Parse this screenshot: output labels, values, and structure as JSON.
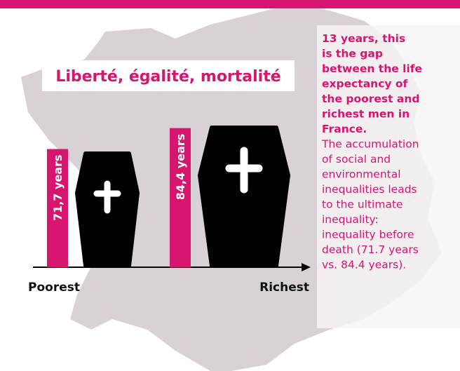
{
  "chart_data": {
    "type": "bar",
    "title": "Liberté, égalité, mortalité",
    "categories": [
      "Poorest",
      "Richest"
    ],
    "values": [
      71.7,
      84.4
    ],
    "value_labels": [
      "71,7 years",
      "84,4 years"
    ],
    "color": "#d6156f",
    "annotation": {
      "headline": [
        "13 years, this",
        "is the gap",
        "between the life",
        "expectancy of",
        "the poorest and",
        "richest men in",
        "France."
      ],
      "body": [
        "The accumulation",
        "of social and",
        "environmental",
        "inequalities leads",
        "to the ultimate",
        "inequality:",
        "inequality before",
        "death (71.7 years",
        "vs. 84.4 years)."
      ]
    }
  }
}
